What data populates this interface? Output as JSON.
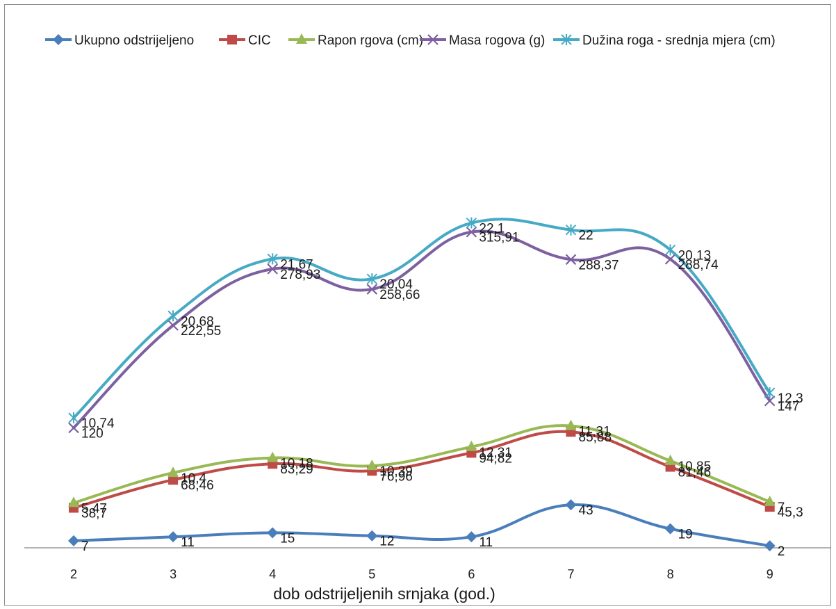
{
  "chart_data": {
    "type": "line",
    "title": "",
    "xlabel": "dob odstrijeljenih srnjaka (god.)",
    "ylabel": "",
    "x": [
      2,
      3,
      4,
      5,
      6,
      7,
      8,
      9
    ],
    "x_tick_labels": [
      "2",
      "3",
      "4",
      "5",
      "6",
      "7",
      "8",
      "9"
    ],
    "ylim": [
      0,
      350
    ],
    "grid": false,
    "legend_position": "top",
    "smooth": true,
    "series": [
      {
        "name": "Ukupno odstrijeljeno",
        "color": "#4a7ebb",
        "marker": "diamond",
        "values": [
          7,
          11,
          15,
          12,
          11,
          43,
          19,
          2
        ],
        "labels": [
          "7",
          "11",
          "15",
          "12",
          "11",
          "43",
          "19",
          "2"
        ]
      },
      {
        "name": "CIC",
        "color": "#be4b48",
        "marker": "square",
        "values": [
          38.7,
          68.46,
          83.29,
          76.96,
          94.82,
          85.88,
          81.46,
          45.3
        ],
        "plot_values": [
          40,
          68,
          84,
          77,
          95,
          116,
          81,
          41
        ],
        "labels": [
          "38,7",
          "68,46",
          "83,29",
          "76,96",
          "94,82",
          "85,88",
          "81,46",
          "45,3"
        ]
      },
      {
        "name": "Rapon rgova (cm)",
        "color": "#98b954",
        "marker": "triangle",
        "values": [
          5.47,
          10.4,
          10.18,
          10.39,
          12.31,
          11.31,
          10.85,
          7
        ],
        "plot_values": [
          45,
          75,
          90,
          82,
          101,
          122,
          87,
          46
        ],
        "labels": [
          "5,47",
          "10,4",
          "10,18",
          "10,39",
          "12,31",
          "11,31",
          "10,85",
          "7"
        ]
      },
      {
        "name": "Masa rogova (g)",
        "color": "#7d60a0",
        "marker": "x",
        "values": [
          120,
          222.55,
          278.93,
          258.66,
          315.91,
          288.37,
          288.74,
          147
        ],
        "labels": [
          "120",
          "222,55",
          "278,93",
          "258,66",
          "315,91",
          "288,37",
          "288,74",
          "147"
        ]
      },
      {
        "name": "Dužina roga - srednja mjera (cm)",
        "color": "#46aac5",
        "marker": "asterisk",
        "values": [
          10.74,
          20.68,
          21.67,
          20.04,
          22.1,
          22,
          20.13,
          12.3
        ],
        "plot_values": [
          130,
          232,
          289,
          269,
          325,
          318,
          298,
          155
        ],
        "labels": [
          "10,74",
          "20,68",
          "21,67",
          "20,04",
          "22,1",
          "22",
          "20,13",
          "12,3"
        ]
      }
    ]
  }
}
